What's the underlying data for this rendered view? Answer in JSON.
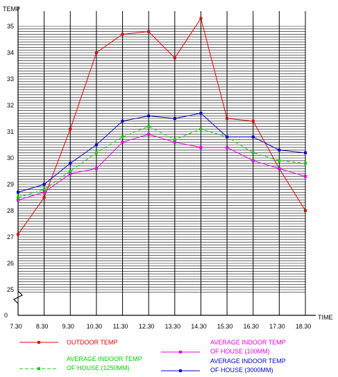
{
  "chart_data": {
    "type": "line",
    "ylabel": "TEMP",
    "xlabel": "TIME",
    "ylim": [
      24,
      35
    ],
    "yticks": [
      35,
      34,
      33,
      32,
      31,
      30,
      29,
      28,
      27,
      26,
      25
    ],
    "y_origin_label": "0",
    "axis_break": "zigzag on y-axis between 0 and 25",
    "grid": "dense horizontal lines, vertical lines at each time",
    "legend_placement": "bottom",
    "categories": [
      "7.30",
      "8.30",
      "9.30",
      "10.30",
      "11.30",
      "12.30",
      "13.30",
      "14.30",
      "15.30",
      "16.30",
      "17.30",
      "18.30"
    ],
    "series": [
      {
        "name": "OUTDOOR TEMP",
        "color": "#e00000",
        "dash": "solid",
        "values": [
          27.1,
          28.5,
          31.1,
          34.0,
          34.7,
          34.8,
          33.8,
          35.3,
          31.5,
          31.4,
          29.6,
          28.0
        ]
      },
      {
        "name": "AVERAGE INDOOR TEMP OF HOUSE (100MM)",
        "color": "#e000e0",
        "dash": "solid",
        "values": [
          28.4,
          28.7,
          29.4,
          29.6,
          30.6,
          30.9,
          30.6,
          30.4,
          30.4,
          29.9,
          29.6,
          29.3
        ]
      },
      {
        "name": "AVERAGE INDOOR TEMP OF HOUSE (1250MM)",
        "color": "#00d000",
        "dash": "dashed",
        "values": [
          28.5,
          28.8,
          29.5,
          30.2,
          30.8,
          31.2,
          30.7,
          31.1,
          30.8,
          30.2,
          29.9,
          29.8
        ]
      },
      {
        "name": "AVERAGE INDOOR TEMP OF HOUSE (3000MM)",
        "color": "#0000c0",
        "dash": "solid",
        "values": [
          28.7,
          29.0,
          29.8,
          30.5,
          31.4,
          31.6,
          31.5,
          31.7,
          30.8,
          30.8,
          30.3,
          30.2
        ]
      }
    ],
    "legend": [
      {
        "lines": [
          "OUTDOOR TEMP"
        ],
        "series": 0
      },
      {
        "lines": [
          "AVERAGE INDOOR TEMP",
          "OF HOUSE (100MM)"
        ],
        "series": 1
      },
      {
        "lines": [
          "AVERAGE INDOOR TEMP",
          "OF HOUSE (1250MM)"
        ],
        "series": 2
      },
      {
        "lines": [
          "AVERAGE INDOOR TEMP",
          "OF HOUSE (3000MM)"
        ],
        "series": 3
      }
    ]
  }
}
